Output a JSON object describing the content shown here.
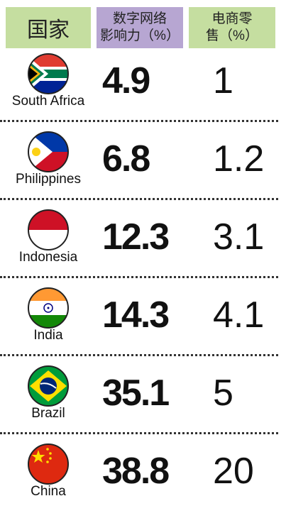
{
  "header": {
    "columns": [
      [
        "国家"
      ],
      [
        "数字网络",
        "影响力（%）"
      ],
      [
        "电商零",
        "售（%）"
      ]
    ]
  },
  "table": {
    "rows": [
      [
        "South Africa",
        4.9,
        1
      ],
      [
        "Philippines",
        6.8,
        1.2
      ],
      [
        "Indonesia",
        12.3,
        3.1
      ],
      [
        "India",
        14.3,
        4.1
      ],
      [
        "Brazil",
        35.1,
        5
      ],
      [
        "China",
        38.8,
        20
      ]
    ]
  }
}
